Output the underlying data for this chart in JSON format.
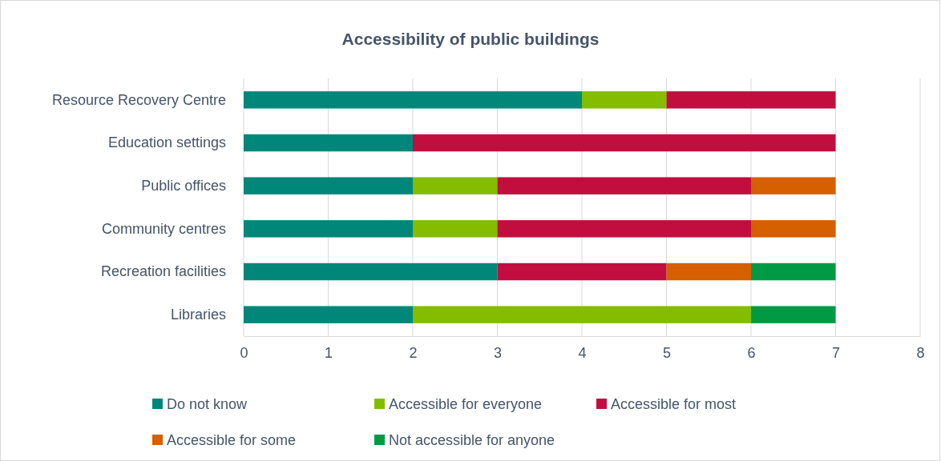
{
  "chart_data": {
    "type": "bar",
    "orientation": "horizontal",
    "stacked": true,
    "title": "Accessibility of public buildings",
    "categories": [
      "Resource Recovery Centre",
      "Education settings",
      "Public offices",
      "Community centres",
      "Recreation facilities",
      "Libraries"
    ],
    "series": [
      {
        "name": "Do not know",
        "color": "#00877a",
        "values": [
          4,
          2,
          2,
          2,
          3,
          2
        ]
      },
      {
        "name": "Accessible for everyone",
        "color": "#84bd00",
        "values": [
          1,
          0,
          1,
          1,
          0,
          4
        ]
      },
      {
        "name": "Accessible for most",
        "color": "#c20e3f",
        "values": [
          2,
          5,
          3,
          3,
          2,
          0
        ]
      },
      {
        "name": "Accessible for some",
        "color": "#d65f00",
        "values": [
          0,
          0,
          1,
          1,
          1,
          0
        ]
      },
      {
        "name": "Not accessible for anyone",
        "color": "#009a44",
        "values": [
          0,
          0,
          0,
          0,
          1,
          1
        ]
      }
    ],
    "xlim": [
      0,
      8
    ],
    "xticks": [
      0,
      1,
      2,
      3,
      4,
      5,
      6,
      7,
      8
    ],
    "grid": "x",
    "legend": "bottom"
  }
}
